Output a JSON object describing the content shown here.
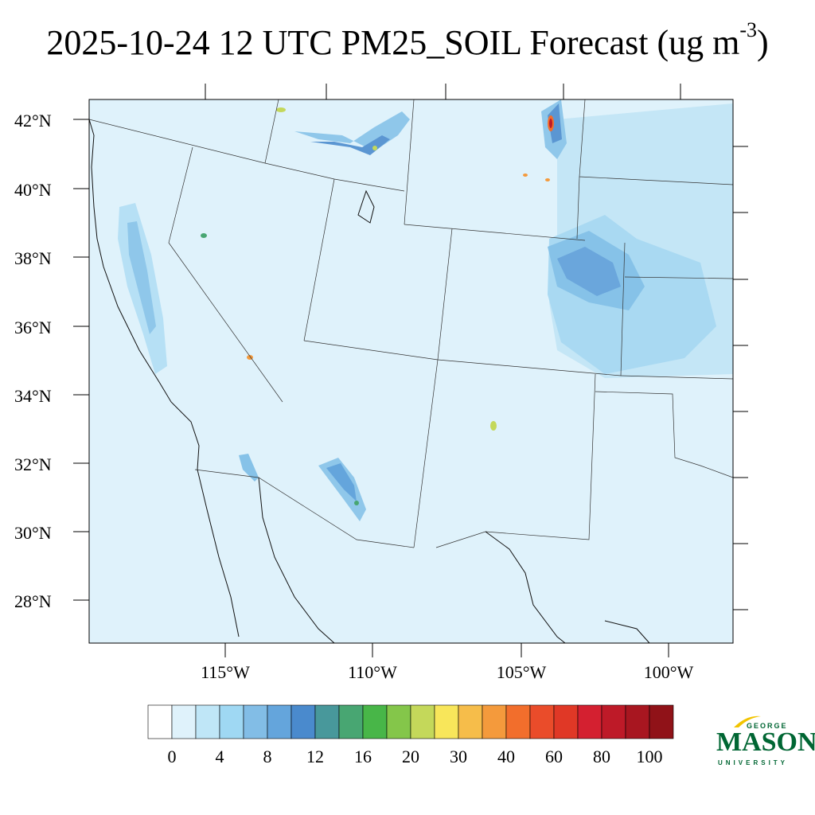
{
  "title": {
    "main": "2025-10-24 12 UTC PM25_SOIL Forecast (ug m",
    "sup": "-3",
    "end": ")"
  },
  "map": {
    "lat_labels": [
      "42°N",
      "40°N",
      "38°N",
      "36°N",
      "34°N",
      "32°N",
      "30°N",
      "28°N"
    ],
    "lon_labels": [
      "115°W",
      "110°W",
      "105°W",
      "100°W"
    ],
    "background_color": "#dff2fb"
  },
  "colorbar": {
    "labels": [
      "0",
      "4",
      "8",
      "12",
      "16",
      "20",
      "30",
      "40",
      "60",
      "80",
      "100"
    ],
    "colors": [
      "#ffffff",
      "#dff2fb",
      "#bfe6f7",
      "#9fd8f3",
      "#82bde6",
      "#64a5dc",
      "#4a8acd",
      "#48989b",
      "#48a672",
      "#48b648",
      "#84c64a",
      "#c4d85a",
      "#f8e65a",
      "#f6bd4a",
      "#f49a3c",
      "#f26e2c",
      "#ea4c2a",
      "#e03826",
      "#d42030",
      "#be1a28",
      "#a81620",
      "#901218"
    ]
  },
  "logo": {
    "george": "GEORGE",
    "mason": "MASON",
    "university": "UNIVERSITY"
  }
}
